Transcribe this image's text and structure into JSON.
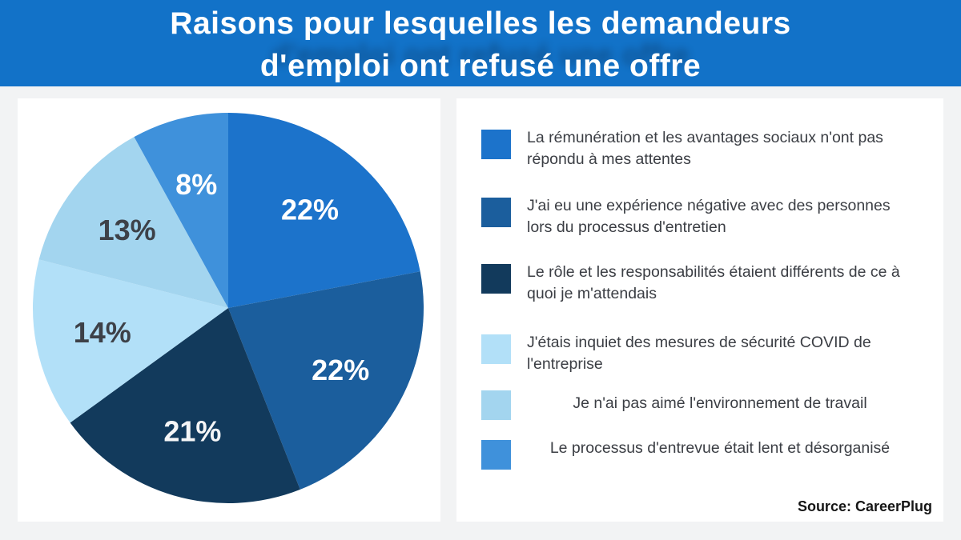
{
  "header": {
    "title_line1": "Raisons pour lesquelles les demandeurs",
    "title_line2": "d'emploi ont refusé une offre",
    "bg_color": "#1272c8"
  },
  "chart_data": {
    "type": "pie",
    "title": "Raisons pour lesquelles les demandeurs d'emploi ont refusé une offre",
    "labels": [
      "La rémunération et les avantages sociaux n'ont pas répondu à mes attentes",
      "J'ai eu une expérience négative avec des personnes lors du processus d'entretien",
      "Le rôle et les responsabilités étaient différents de ce à quoi je m'attendais",
      "J'étais inquiet des mesures de sécurité COVID de l'entreprise",
      "Je n'ai pas aimé l'environnement de travail",
      "Le processus d'entrevue était lent et désorganisé"
    ],
    "values": [
      22,
      22,
      21,
      14,
      13,
      8
    ],
    "value_labels": [
      "22%",
      "22%",
      "21%",
      "14%",
      "13%",
      "8%"
    ],
    "colors": [
      "#1c73cb",
      "#1b5e9d",
      "#123a5c",
      "#b2e0f8",
      "#a3d5ef",
      "#3f91db"
    ],
    "value_label_colors": [
      "#ffffff",
      "#ffffff",
      "#f5f6f7",
      "#3d4148",
      "#3d4148",
      "#ffffff"
    ],
    "start_angle": "12 o'clock, clockwise",
    "legend_position": "right",
    "source": "Source: CareerPlug"
  }
}
